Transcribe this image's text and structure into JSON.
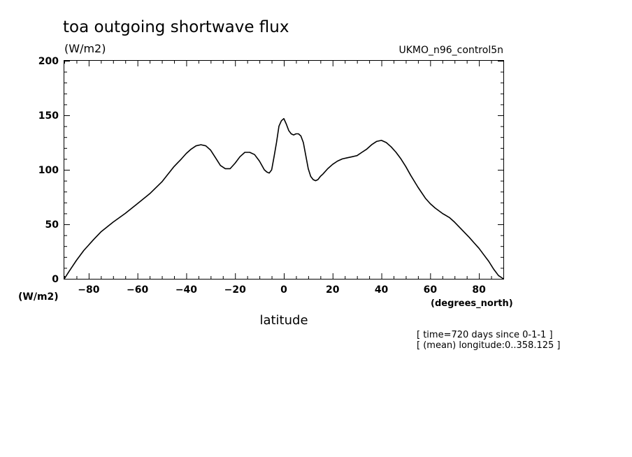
{
  "chart_data": {
    "type": "line",
    "title": "toa outgoing shortwave flux",
    "title_units": "(W/m2)",
    "model_label": "UKMO_n96_control5n",
    "ylabel": "(W/m2)",
    "xlabel": "latitude",
    "xunits": "(degrees_north)",
    "info_lines": [
      "[ time=720 days since 0-1-1 ]",
      "[ (mean) longitude:0..358.125 ]"
    ],
    "xlim": [
      -90,
      90
    ],
    "ylim": [
      0,
      200
    ],
    "x_ticks": [
      -80,
      -60,
      -40,
      -20,
      0,
      20,
      40,
      60,
      80
    ],
    "y_ticks": [
      0,
      50,
      100,
      150,
      200
    ],
    "grid": false,
    "series": [
      {
        "x": [
          -90,
          -88,
          -85,
          -82,
          -80,
          -78,
          -75,
          -70,
          -65,
          -60,
          -55,
          -50,
          -45,
          -42,
          -40,
          -38,
          -36,
          -34,
          -32,
          -30,
          -28,
          -26,
          -24,
          -22,
          -20,
          -18,
          -16,
          -14,
          -12,
          -10,
          -8,
          -7,
          -6,
          -5,
          -4,
          -3,
          -2,
          -1,
          0,
          1,
          2,
          3,
          4,
          5,
          6,
          7,
          8,
          9,
          10,
          11,
          12,
          13,
          14,
          15,
          16,
          18,
          20,
          22,
          24,
          26,
          28,
          30,
          32,
          34,
          36,
          38,
          40,
          42,
          44,
          46,
          48,
          50,
          52,
          55,
          58,
          60,
          62,
          65,
          68,
          70,
          73,
          76,
          78,
          80,
          82,
          84,
          86,
          88,
          90
        ],
        "y": [
          0,
          7,
          17,
          26,
          31,
          36,
          43,
          52,
          60,
          69,
          78,
          89,
          103,
          110,
          115,
          119,
          122,
          123,
          122,
          118,
          111,
          104,
          101,
          101,
          106,
          112,
          116,
          116,
          114,
          108,
          100,
          98,
          97,
          100,
          112,
          125,
          140,
          145,
          147,
          142,
          136,
          133,
          132,
          133,
          133,
          131,
          125,
          113,
          101,
          94,
          91,
          90,
          91,
          94,
          96,
          101,
          105,
          108,
          110,
          111,
          112,
          113,
          116,
          119,
          123,
          126,
          127,
          125,
          121,
          116,
          110,
          103,
          95,
          84,
          74,
          69,
          65,
          60,
          56,
          52,
          45,
          38,
          33,
          28,
          22,
          16,
          9,
          3,
          0
        ]
      }
    ]
  }
}
